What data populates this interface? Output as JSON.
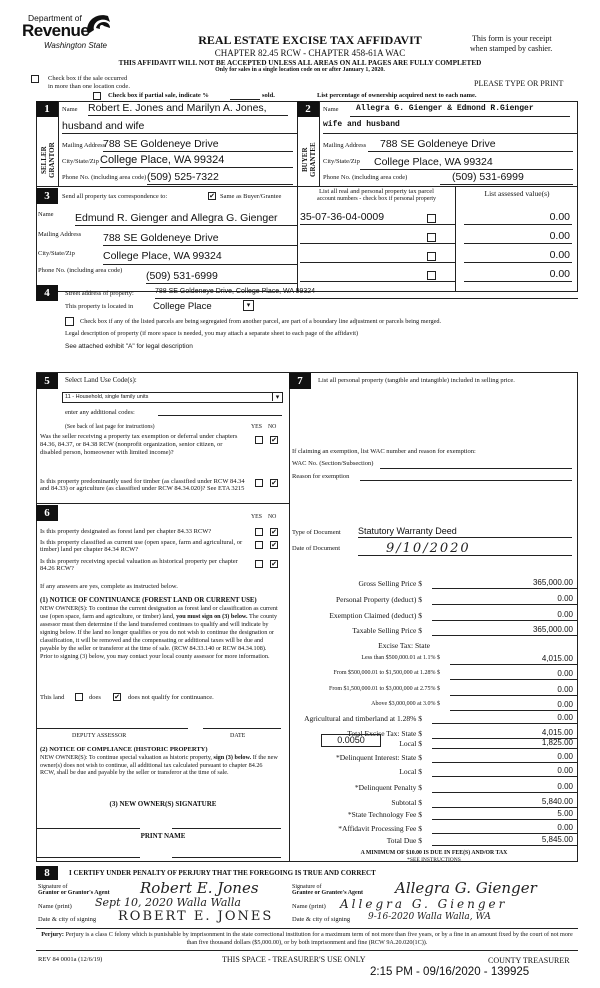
{
  "header": {
    "logo": {
      "line1": "Department of",
      "line2": "Revenue",
      "line3": "Washington State"
    },
    "title": "REAL ESTATE EXCISE TAX AFFIDAVIT",
    "subtitle": "CHAPTER 82.45 RCW - CHAPTER 458-61A WAC",
    "warning": "THIS AFFIDAVIT WILL NOT BE ACCEPTED UNLESS ALL AREAS ON ALL PAGES ARE FULLY COMPLETED",
    "only_for": "Only for sales in a single location code on or after January 1, 2020.",
    "receipt1": "This form is your receipt",
    "receipt2": "when stamped by cashier.",
    "multi_location_1": "Check box if the sale occurred",
    "multi_location_2": "in more than one location code.",
    "type_or_print": "PLEASE TYPE OR PRINT",
    "partial_sale_a": "Check box if partial sale, indicate %",
    "partial_sale_b": "sold.",
    "ownership_note": "List percentage of ownership acquired next to each name."
  },
  "section1": {
    "num": "1",
    "side": "SELLER GRANTOR",
    "name_label": "Name",
    "name": "Robert E. Jones and Marilyn A. Jones,",
    "name2": "husband and wife",
    "mail_label": "Mailing Address",
    "mail": "788 SE Goldeneye Drive",
    "city_label": "City/State/Zip",
    "city": "College Place, WA 99324",
    "phone_label": "Phone No. (including area code)",
    "phone": "(509) 525-7322"
  },
  "section2": {
    "num": "2",
    "side": "BUYER GRANTEE",
    "name_label": "Name",
    "name": "Allegra G. Gienger & Edmond R.Gienger",
    "name2": "wife and husband",
    "mail_label": "Mailing Address",
    "mail": "788 SE Goldeneye Drive",
    "city_label": "City/State/Zip",
    "city": "College Place, WA 99324",
    "phone_label": "Phone No. (including area code)",
    "phone": "(509) 531-6999"
  },
  "section3": {
    "num": "3",
    "send_label": "Send all property tax correspondence to:",
    "same_label": "Same as Buyer/Grantee",
    "same_checked": true,
    "name_label": "Name",
    "name": "Edmund R. Gienger and Allegra G. Gienger",
    "mail_label": "Mailing Address",
    "mail": "788 SE Goldeneye Drive",
    "city_label": "City/State/Zip",
    "city": "College Place, WA 99324",
    "phone_label": "Phone No. (including area code)",
    "phone": "(509) 531-6999",
    "parcel_header1": "List all real and personal property tax parcel",
    "parcel_header2": "account numbers - check box if personal property",
    "value_header": "List assessed value(s)",
    "parcels": [
      {
        "number": "35-07-36-04-0009",
        "personal": false,
        "value": "0.00"
      },
      {
        "number": "",
        "personal": false,
        "value": "0.00"
      },
      {
        "number": "",
        "personal": false,
        "value": "0.00"
      },
      {
        "number": "",
        "personal": false,
        "value": "0.00"
      }
    ]
  },
  "section4": {
    "num": "4",
    "street_label": "Street address of property:",
    "street": "788 SE Goldeneye Drive, College Place, WA 99324",
    "located_label": "This property is located in",
    "located": "College Place",
    "segregate_label": "Check box if any of the listed parcels are being segregated from another parcel, are part of a boundary line adjustment or parcels being merged.",
    "legal_label": "Legal description of property (if more space is needed, you may attach a separate sheet to each page of the affidavit)",
    "legal": "See attached exhibit \"A\" for legal description"
  },
  "section5": {
    "num": "5",
    "label": "Select Land Use Code(s):",
    "code": "11 - Household, single family units",
    "additional_label": "enter any additional codes:",
    "see_back": "(See back of last page for instructions)",
    "yes": "YES",
    "no": "NO",
    "q1": "Was the seller receiving a property tax exemption or deferral under chapters 84.36, 84.37, or 84.38 RCW (nonprofit organization, senior citizen, or disabled person, homeowner with limited income)?",
    "q2": "Is this property predominantly used for timber (as classified under RCW 84.34 and 84.33) or agriculture (as classified under RCW 84.34.020)? See ETA 3215"
  },
  "section6": {
    "num": "6",
    "yes": "YES",
    "no": "NO",
    "q1": "Is this property designated as forest land per chapter 84.33 RCW?",
    "q2": "Is this property classified as current use (open space, farm and agricultural, or timber) land per chapter 84.34 RCW?",
    "q3": "Is this property receiving special valuation as historical property per chapter 84.26 RCW?",
    "if_yes": "If any answers are yes, complete as instructed below.",
    "notice1_title": "(1) NOTICE OF CONTINUANCE (FOREST LAND OR CURRENT USE)",
    "notice1_a": "NEW OWNER(S): To continue the current designation as forest land or classification as current use (open space, farm and agriculture, or timber) land, ",
    "notice1_b": "you must sign on (3) below.",
    "notice1_c": " The county assessor must then determine if the land transferred continues to qualify and will indicate by signing below. If the land no longer qualifies or you do not wish to continue the designation or classification, it will be removed and the compensating or additional taxes will be due and payable by the seller or transferor at the time of sale. (RCW 84.33.140 or RCW 84.34.108). Prior to signing (3) below, you may contact your local county assessor for more information.",
    "this_land": "This land",
    "does": "does",
    "does_not": "does not qualify for continuance.",
    "deputy": "DEPUTY ASSESSOR",
    "date": "DATE",
    "notice2_title": "(2) NOTICE OF COMPLIANCE (HISTORIC PROPERTY)",
    "notice2_a": "NEW OWNER(S): To continue special valuation as historic property, ",
    "notice2_b": "sign (3) below.",
    "notice2_c": " If the new owner(s) does not wish to continue, all additional tax calculated pursuant to chapter 84.26 RCW, shall be due and payable by the seller or transferor at the time of sale.",
    "sig_title": "(3) NEW OWNER(S) SIGNATURE",
    "print_name": "PRINT NAME"
  },
  "section7": {
    "num": "7",
    "label": "List all personal property (tangible and intangible) included in selling price.",
    "exemption_label": "If claiming an exemption, list WAC number and reason for exemption:",
    "wac_label": "WAC No. (Section/Subsection)",
    "reason_label": "Reason for exemption",
    "doc_type_label": "Type of Document",
    "doc_type": "Statutory Warranty Deed",
    "doc_date_label": "Date of Document",
    "doc_date": "9/10/2020",
    "local_rate": "0.0050",
    "tax_lines": [
      {
        "label": "Gross Selling Price $",
        "value": "365,000.00"
      },
      {
        "label": "Personal Property (deduct) $",
        "value": "0.00"
      },
      {
        "label": "Exemption Claimed (deduct) $",
        "value": "0.00"
      },
      {
        "label": "Taxable Selling Price $",
        "value": "365,000.00"
      },
      {
        "label": "Excise Tax: State",
        "value": null
      },
      {
        "label": "Less than $500,000.01 at 1.1% $",
        "value": "4,015.00",
        "small": true
      },
      {
        "label": "From $500,000.01 to $1,500,000 at 1.28% $",
        "value": "0.00",
        "small": true
      },
      {
        "label": "From $1,500,000.01 to $3,000,000 at 2.75% $",
        "value": "0.00",
        "small": true
      },
      {
        "label": "Above $3,000,000 at 3.0% $",
        "value": "0.00",
        "small": true
      },
      {
        "label": "Agricultural and timberland at 1.28% $",
        "value": "0.00"
      },
      {
        "label": "Total Excise Tax: State $",
        "value": "4,015.00"
      },
      {
        "label": "Local $",
        "value": "1,825.00"
      },
      {
        "label": "*Delinquent Interest: State $",
        "value": "0.00"
      },
      {
        "label": "Local $",
        "value": "0.00"
      },
      {
        "label": "*Delinquent Penalty $",
        "value": "0.00"
      },
      {
        "label": "Subtotal $",
        "value": "5,840.00"
      },
      {
        "label": "*State Technology Fee $",
        "value": "5.00"
      },
      {
        "label": "*Affidavit Processing Fee $",
        "value": "0.00"
      },
      {
        "label": "Total Due $",
        "value": "5,845.00"
      }
    ],
    "minimum": "A MINIMUM OF $10.00 IS DUE IN FEE(S) AND/OR TAX",
    "see_instructions": "*SEE INSTRUCTIONS"
  },
  "section8": {
    "num": "8",
    "certify": "I CERTIFY UNDER PENALTY OF PERJURY THAT THE FOREGOING IS TRUE AND CORRECT",
    "grantor_sig_label1": "Signature of",
    "grantor_sig_label2": "Grantor or Grantor's Agent",
    "grantor_sig": "Robert E. Jones",
    "grantor_name_label": "Name (print)",
    "grantor_name": "Sept 10, 2020 Walla Walla",
    "grantor_date_label": "Date & city of signing",
    "grantor_date": "ROBERT E. JONES",
    "grantee_sig_label1": "Signature of",
    "grantee_sig_label2": "Grantee or Grantee's Agent",
    "grantee_sig": "Allegra G. Gienger",
    "grantee_name_label": "Name (print)",
    "grantee_name": "Allegra G. Gienger",
    "grantee_date_label": "Date & city of signing",
    "grantee_date": "9-16-2020 Walla Walla, WA"
  },
  "perjury": {
    "label": "Perjury:",
    "text": " Perjury is a class C felony which is punishable by imprisonment in the state correctional institution for a maximum term of not more than five years, or by a fine in an amount fixed by the court of not more than five thousand dollars ($5,000.00), or by both imprisonment and fine (RCW 9A.20.020(1C))."
  },
  "footer": {
    "form_no": "REV 84 0001a (12/6/19)",
    "treasurer_use": "THIS SPACE - TREASURER'S USE ONLY",
    "county_treasurer": "COUNTY TREASURER",
    "stamp": "2:15 PM - 09/16/2020 - 139925"
  }
}
